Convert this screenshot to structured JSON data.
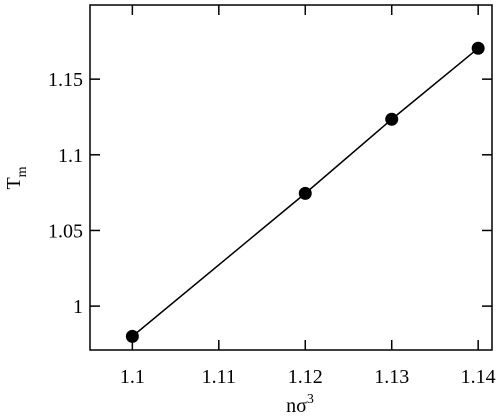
{
  "chart_data": {
    "type": "line",
    "x_label": "nσ",
    "x_label_sup": "3",
    "y_label": "T",
    "y_label_sub": "m",
    "x": [
      1.1,
      1.12,
      1.13,
      1.14
    ],
    "series": [
      {
        "color": "#000000",
        "values": [
          0.98,
          1.0745,
          1.1235,
          1.1704
        ]
      }
    ],
    "xlim": [
      1.0951,
      1.1416
    ],
    "xticks": [
      1.1,
      1.11,
      1.12,
      1.13,
      1.14
    ],
    "ylim": [
      0.971,
      1.199
    ],
    "yticks": [
      1,
      1.05,
      1.1,
      1.15
    ],
    "grid": false
  }
}
